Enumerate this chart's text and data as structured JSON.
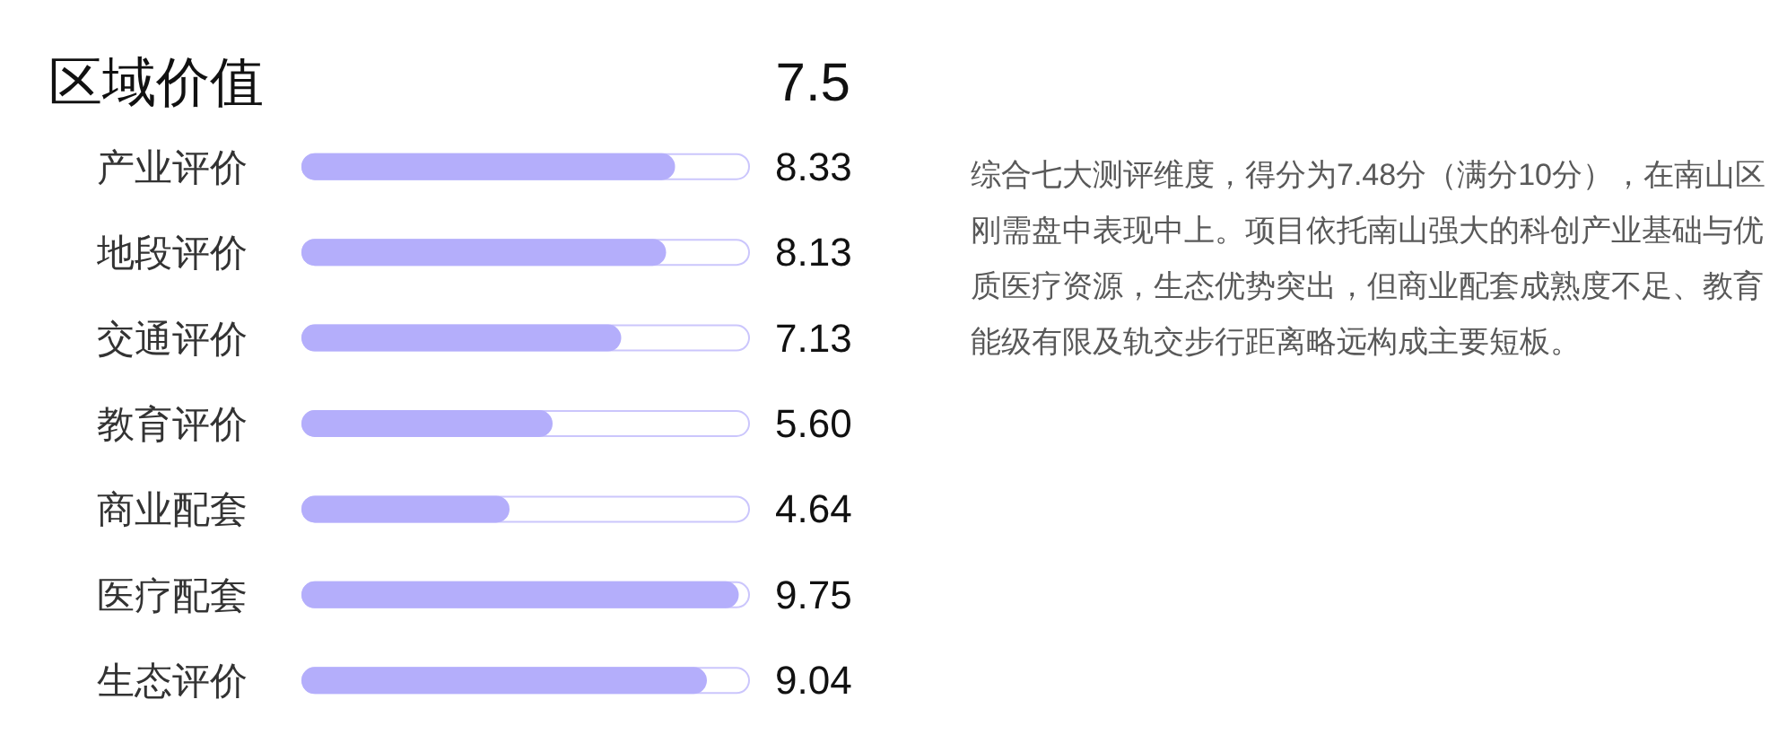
{
  "chart_data": {
    "type": "bar",
    "orientation": "horizontal",
    "title": "区域价值",
    "categories": [
      "产业评价",
      "地段评价",
      "交通评价",
      "教育评价",
      "商业配套",
      "医疗配套",
      "生态评价"
    ],
    "values": [
      8.33,
      8.13,
      7.13,
      5.6,
      4.64,
      9.75,
      9.04
    ],
    "value_labels": [
      "8.33",
      "8.13",
      "7.13",
      "5.60",
      "4.64",
      "9.75",
      "9.04"
    ],
    "color": "#b4aefb",
    "xlim": [
      0,
      10
    ],
    "tick_labels": "y",
    "annotations": [
      "7.5",
      "综合七大测评维度，得分为7.48分（满分10分），在南山区刚需盘中表现中上。项目依托南山强大的科创产业基础与优质医疗资源，生态优势突出，但商业配套成熟度不足、教育能级有限及轨交步行距离略远构成主要短板。"
    ]
  }
}
